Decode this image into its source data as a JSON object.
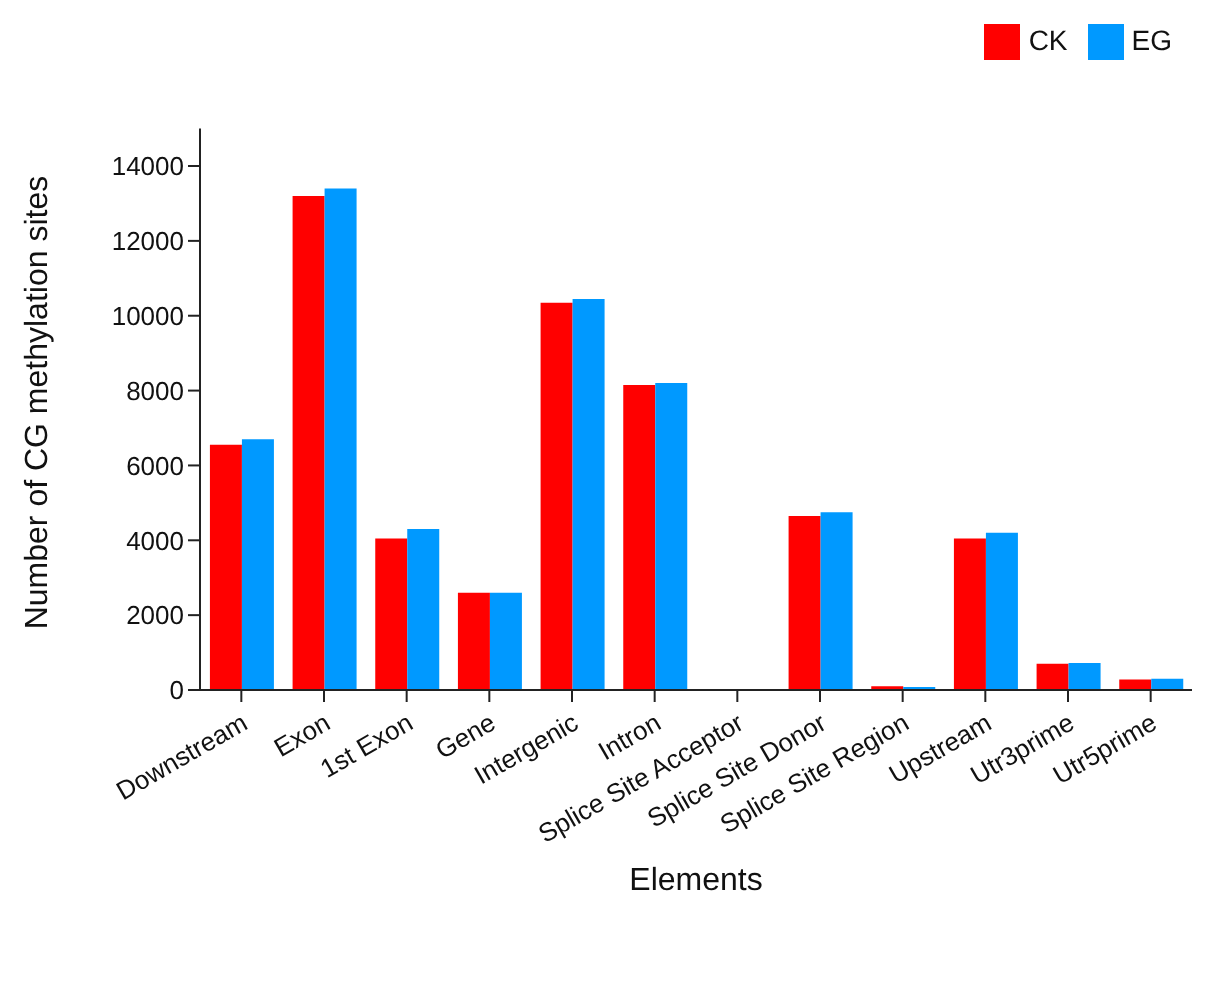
{
  "chart_data": {
    "type": "bar",
    "xlabel": "Elements",
    "ylabel": "Number of CG methylation sites",
    "categories": [
      "Downstream",
      "Exon",
      "1st Exon",
      "Gene",
      "Intergenic",
      "Intron",
      "Splice Site Acceptor",
      "Splice Site Donor",
      "Splice Site Region",
      "Upstream",
      "Utr3prime",
      "Utr5prime"
    ],
    "series": [
      {
        "name": "CK",
        "color": "#ff0000",
        "values": [
          6550,
          13200,
          4050,
          2600,
          10350,
          8150,
          0,
          4650,
          100,
          4050,
          700,
          280
        ]
      },
      {
        "name": "EG",
        "color": "#0099ff",
        "values": [
          6700,
          13400,
          4300,
          2600,
          10450,
          8200,
          0,
          4750,
          80,
          4200,
          720,
          300
        ]
      }
    ],
    "ylim": [
      0,
      15000
    ],
    "yticks": [
      0,
      2000,
      4000,
      6000,
      8000,
      10000,
      12000,
      14000
    ],
    "grid": false,
    "legend": "top right"
  }
}
